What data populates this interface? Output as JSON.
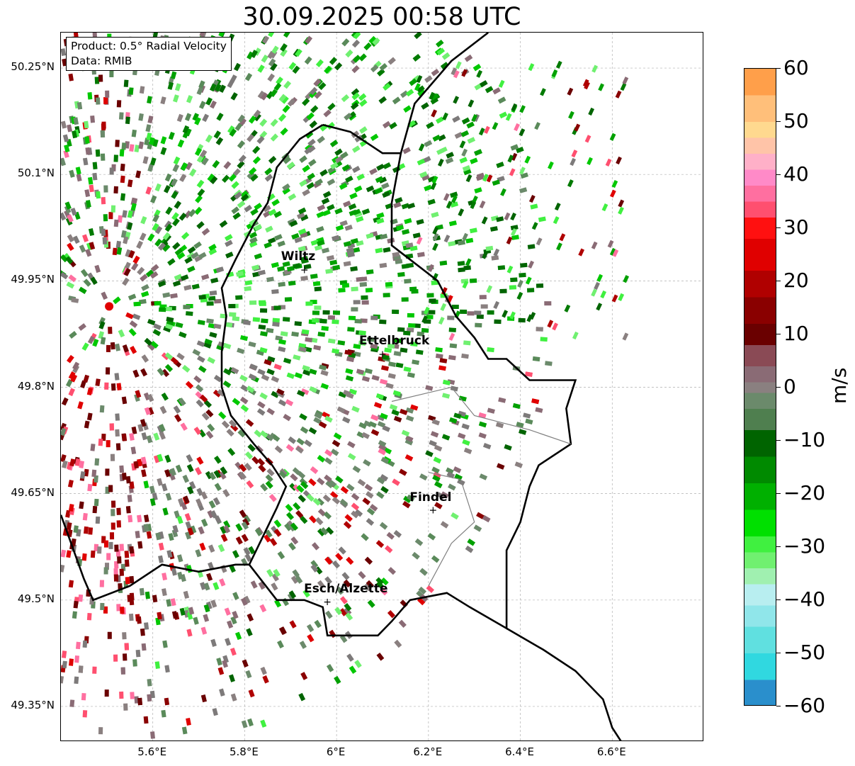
{
  "title": "30.09.2025 00:58 UTC",
  "info": {
    "product": "Product: 0.5° Radial Velocity",
    "data": "Data: RMIB"
  },
  "map_extent": {
    "lon_min": 5.4,
    "lon_max": 6.8,
    "lat_min": 49.3,
    "lat_max": 50.3
  },
  "lat_ticks": [
    {
      "label": "50.25°N",
      "value": 50.25
    },
    {
      "label": "50.1°N",
      "value": 50.1
    },
    {
      "label": "49.95°N",
      "value": 49.95
    },
    {
      "label": "49.8°N",
      "value": 49.8
    },
    {
      "label": "49.65°N",
      "value": 49.65
    },
    {
      "label": "49.5°N",
      "value": 49.5
    },
    {
      "label": "49.35°N",
      "value": 49.35
    }
  ],
  "lon_ticks": [
    {
      "label": "5.6°E",
      "value": 5.6
    },
    {
      "label": "5.8°E",
      "value": 5.8
    },
    {
      "label": "6°E",
      "value": 6.0
    },
    {
      "label": "6.2°E",
      "value": 6.2
    },
    {
      "label": "6.4°E",
      "value": 6.4
    },
    {
      "label": "6.6°E",
      "value": 6.6
    }
  ],
  "cities": [
    {
      "name": "Wiltz",
      "lon": 5.93,
      "lat": 49.966
    },
    {
      "name": "Ettelbruck",
      "lon": 6.1,
      "lat": 49.847
    },
    {
      "name": "Findel",
      "lon": 6.21,
      "lat": 49.627
    },
    {
      "name": "Esch/Alzette",
      "lon": 5.98,
      "lat": 49.498
    }
  ],
  "radar_site": {
    "lon": 5.505,
    "lat": 49.914
  },
  "colorbar": {
    "label": "m/s",
    "min": -60,
    "max": 60,
    "ticks": [
      {
        "label": "60",
        "value": 60
      },
      {
        "label": "50",
        "value": 50
      },
      {
        "label": "40",
        "value": 40
      },
      {
        "label": "30",
        "value": 30
      },
      {
        "label": "20",
        "value": 20
      },
      {
        "label": "10",
        "value": 10
      },
      {
        "label": "0",
        "value": 0
      },
      {
        "label": "−10",
        "value": -10
      },
      {
        "label": "−20",
        "value": -20
      },
      {
        "label": "−30",
        "value": -30
      },
      {
        "label": "−40",
        "value": -40
      },
      {
        "label": "−50",
        "value": -50
      },
      {
        "label": "−60",
        "value": -60
      }
    ],
    "stops": [
      {
        "from": 55,
        "to": 60,
        "color": "#ff9f4a"
      },
      {
        "from": 50,
        "to": 55,
        "color": "#ffbf7a"
      },
      {
        "from": 47,
        "to": 50,
        "color": "#ffd98f"
      },
      {
        "from": 44,
        "to": 47,
        "color": "#ffc4a8"
      },
      {
        "from": 41,
        "to": 44,
        "color": "#ffb0c8"
      },
      {
        "from": 38,
        "to": 41,
        "color": "#ff8ac8"
      },
      {
        "from": 35,
        "to": 38,
        "color": "#ff6fa0"
      },
      {
        "from": 32,
        "to": 35,
        "color": "#ff4f6f"
      },
      {
        "from": 28,
        "to": 32,
        "color": "#ff1010"
      },
      {
        "from": 22,
        "to": 28,
        "color": "#e00000"
      },
      {
        "from": 17,
        "to": 22,
        "color": "#b00000"
      },
      {
        "from": 12,
        "to": 17,
        "color": "#8a0000"
      },
      {
        "from": 8,
        "to": 12,
        "color": "#6a0000"
      },
      {
        "from": 4,
        "to": 8,
        "color": "#8a4a55"
      },
      {
        "from": 1,
        "to": 4,
        "color": "#8a6b75"
      },
      {
        "from": -1,
        "to": 1,
        "color": "#8a8080"
      },
      {
        "from": -4,
        "to": -1,
        "color": "#6b8a6b"
      },
      {
        "from": -8,
        "to": -4,
        "color": "#4f7f4f"
      },
      {
        "from": -13,
        "to": -8,
        "color": "#006400"
      },
      {
        "from": -18,
        "to": -13,
        "color": "#008a00"
      },
      {
        "from": -23,
        "to": -18,
        "color": "#00b000"
      },
      {
        "from": -28,
        "to": -23,
        "color": "#00e000"
      },
      {
        "from": -31,
        "to": -28,
        "color": "#40f040"
      },
      {
        "from": -34,
        "to": -31,
        "color": "#70f070"
      },
      {
        "from": -37,
        "to": -34,
        "color": "#a0f0b0"
      },
      {
        "from": -41,
        "to": -37,
        "color": "#b8eef0"
      },
      {
        "from": -45,
        "to": -41,
        "color": "#90e6ea"
      },
      {
        "from": -50,
        "to": -45,
        "color": "#60e0e0"
      },
      {
        "from": -55,
        "to": -50,
        "color": "#30d8e0"
      },
      {
        "from": -60,
        "to": -55,
        "color": "#2a8fcc"
      }
    ]
  },
  "echo_colors": {
    "inbound": [
      "#006400",
      "#007a00",
      "#00a000",
      "#00c800",
      "#40f040",
      "#70f070"
    ],
    "neutral": [
      "#8a8080",
      "#7d7a7a",
      "#6b8a6b",
      "#8a6b75",
      "#5a8a5a"
    ],
    "outbound": [
      "#8a0000",
      "#6a0000",
      "#b00000",
      "#e00000",
      "#ff4f6f",
      "#ff6fa0"
    ]
  },
  "boundary_color": "#000000",
  "canton_color": "#808080",
  "grid_color": "#b0b0b0",
  "site_marker_color": "#e00000"
}
